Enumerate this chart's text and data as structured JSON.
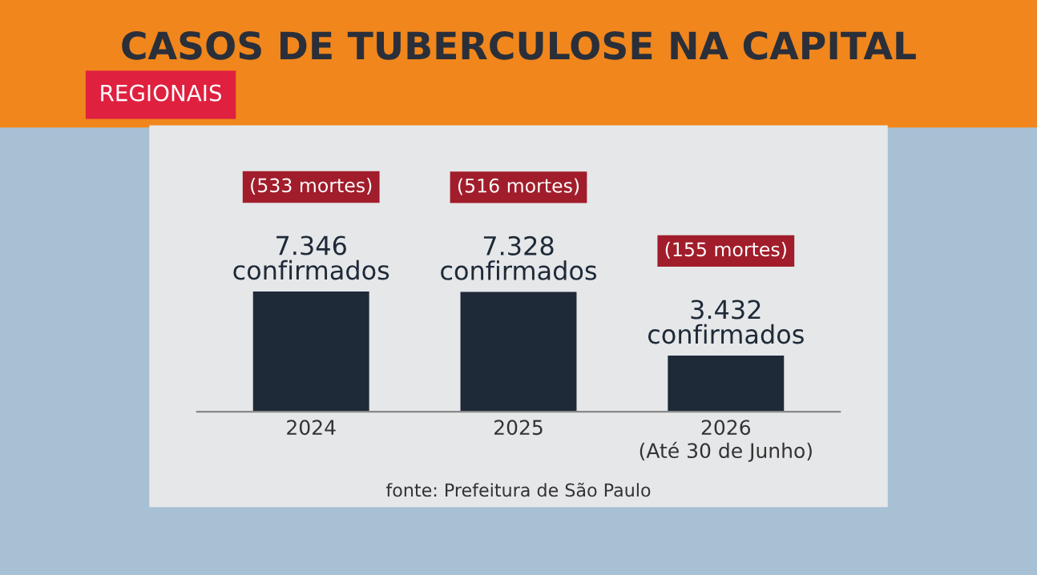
{
  "chart_data": {
    "type": "bar",
    "title": "CASOS DE TUBERCULOSE NA CAPITAL",
    "categories": [
      "2024",
      "2025",
      "2026\n(Até 30 de Junho)"
    ],
    "values": [
      7346,
      7328,
      3432
    ],
    "color": "#1e2a38",
    "value_labels": [
      "7.346\nconfirmados",
      "7.328\nconfirmados",
      "3.432\nconfirmados"
    ],
    "annotations": [
      "(533 mortes)",
      "(516 mortes)",
      "(155 mortes)",
      "fonte: Prefeitura de São Paulo",
      "REGIONAIS"
    ]
  }
}
